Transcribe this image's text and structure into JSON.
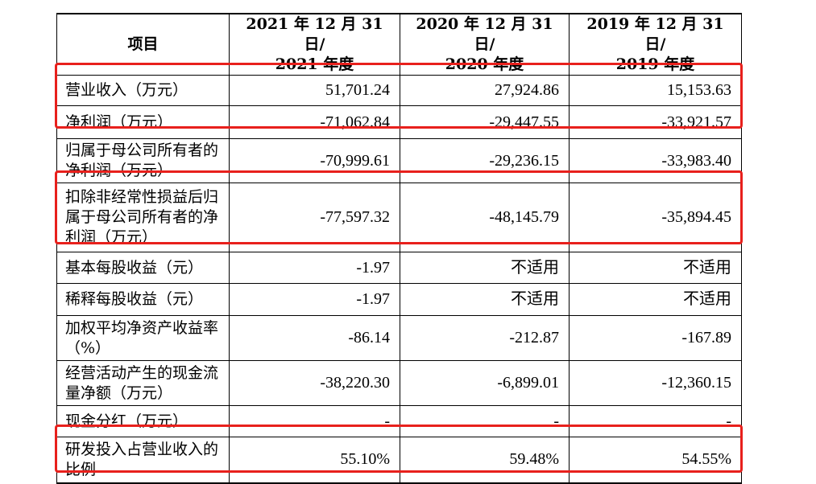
{
  "header": {
    "item": "项目",
    "years": [
      {
        "line1": "2021 年 12 月 31 日/",
        "line2": "2021 年度"
      },
      {
        "line1": "2020 年 12 月 31 日/",
        "line2": "2020 年度"
      },
      {
        "line1": "2019 年 12 月 31 日/",
        "line2": "2019 年度"
      }
    ]
  },
  "rows": [
    {
      "label": "营业收入（万元）",
      "values": [
        "51,701.24",
        "27,924.86",
        "15,153.63"
      ]
    },
    {
      "label": "净利润（万元）",
      "values": [
        "-71,062.84",
        "-29,447.55",
        "-33,921.57"
      ]
    },
    {
      "label": "归属于母公司所有者的净利润（万元）",
      "values": [
        "-70,999.61",
        "-29,236.15",
        "-33,983.40"
      ]
    },
    {
      "label": "扣除非经常性损益后归属于母公司所有者的净利润（万元）",
      "values": [
        "-77,597.32",
        "-48,145.79",
        "-35,894.45"
      ]
    },
    {
      "label": "基本每股收益（元）",
      "values": [
        "-1.97",
        "不适用",
        "不适用"
      ]
    },
    {
      "label": "稀释每股收益（元）",
      "values": [
        "-1.97",
        "不适用",
        "不适用"
      ]
    },
    {
      "label": "加权平均净资产收益率（%）",
      "values": [
        "-86.14",
        "-212.87",
        "-167.89"
      ]
    },
    {
      "label": "经营活动产生的现金流量净额（万元）",
      "values": [
        "-38,220.30",
        "-6,899.01",
        "-12,360.15"
      ]
    },
    {
      "label": "现金分红（万元）",
      "values": [
        "-",
        "-",
        "-"
      ]
    },
    {
      "label": "研发投入占营业收入的比例",
      "values": [
        "55.10%",
        "59.48%",
        "54.55%"
      ]
    }
  ],
  "highlight_color": "#e8201c"
}
